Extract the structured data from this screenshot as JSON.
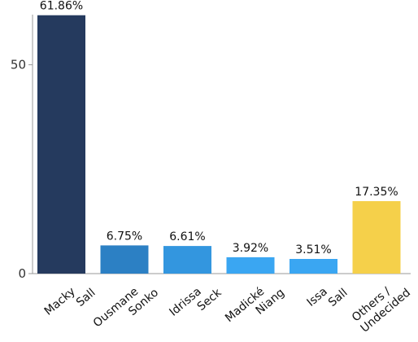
{
  "chart_data": {
    "type": "bar",
    "categories": [
      [
        "Macky",
        "Sall"
      ],
      [
        "Ousmane",
        "Sonko"
      ],
      [
        "Idrissa",
        "Seck"
      ],
      [
        "Madické",
        "Niang"
      ],
      [
        "Issa",
        "Sall"
      ],
      [
        "Others /",
        "Undecided"
      ]
    ],
    "values": [
      61.86,
      6.75,
      6.61,
      3.92,
      3.51,
      17.35
    ],
    "data_labels": [
      "61.86%",
      "6.75%",
      "6.61%",
      "3.92%",
      "3.51%",
      "17.35%"
    ],
    "colors": [
      "#253a5e",
      "#2c80c4",
      "#3396df",
      "#3aa6f2",
      "#3aa6f2",
      "#f5d04a"
    ],
    "y_ticks": [
      0,
      50
    ],
    "ylim": [
      0,
      62
    ],
    "grid": false,
    "legend": "none"
  }
}
